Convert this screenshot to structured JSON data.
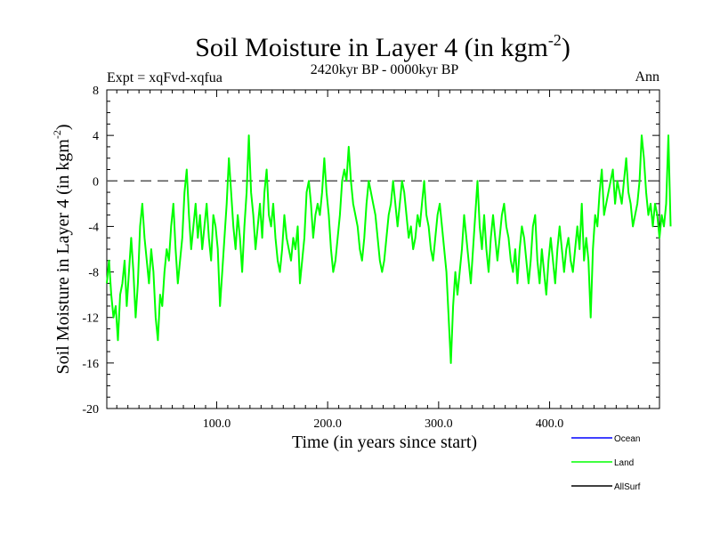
{
  "chart_data": {
    "type": "line",
    "title_main": "Soil Moisture in Layer 4 (in kgm",
    "title_sup": "-2",
    "title_close": ")",
    "subtitle": "2420kyr BP - 0000kyr BP",
    "expt_label": "Expt = xqFvd-xqfua",
    "season_label": "Ann",
    "xlabel": "Time (in years since start)",
    "ylabel_main": "Soil Moisture in Layer 4 (in kgm",
    "ylabel_sup": "-2",
    "ylabel_close": ")",
    "xlim": [
      1,
      499
    ],
    "ylim": [
      -20,
      8
    ],
    "x_ticks": [
      100,
      200,
      300,
      400
    ],
    "x_tick_labels": [
      "100.0",
      "200.0",
      "300.0",
      "400.0"
    ],
    "y_ticks": [
      8,
      4,
      0,
      -4,
      -8,
      -12,
      -16,
      -20
    ],
    "y_tick_labels": [
      "8",
      "4",
      "0",
      "-4",
      "-8",
      "-12",
      "-16",
      "-20"
    ],
    "reference_line": 0,
    "legend": [
      {
        "name": "Ocean",
        "color": "#0000ff"
      },
      {
        "name": "Land",
        "color": "#00ff00"
      },
      {
        "name": "AllSurf",
        "color": "#000000"
      }
    ],
    "series": [
      {
        "name": "Land",
        "color": "#00ff00",
        "x_start": 1,
        "x_step": 2,
        "values": [
          -9,
          -7,
          -10,
          -12,
          -11,
          -14,
          -10,
          -9,
          -7,
          -11,
          -8,
          -5,
          -8,
          -12,
          -9,
          -4,
          -2,
          -5,
          -7,
          -9,
          -6,
          -8,
          -12,
          -14,
          -10,
          -11,
          -8,
          -6,
          -7,
          -4,
          -2,
          -6,
          -9,
          -7,
          -5,
          -1,
          1,
          -3,
          -6,
          -4,
          -2,
          -5,
          -3,
          -6,
          -4,
          -2,
          -5,
          -7,
          -3,
          -4,
          -6,
          -11,
          -8,
          -5,
          -2,
          2,
          -1,
          -4,
          -6,
          -3,
          -5,
          -8,
          -4,
          -1,
          4,
          -1,
          -3,
          -6,
          -4,
          -2,
          -5,
          -1,
          1,
          -3,
          -4,
          -2,
          -5,
          -7,
          -8,
          -6,
          -3,
          -5,
          -6,
          -7,
          -5,
          -6,
          -4,
          -9,
          -7,
          -5,
          -1,
          0,
          -2,
          -5,
          -3,
          -2,
          -3,
          -1,
          2,
          -1,
          -3,
          -6,
          -8,
          -7,
          -5,
          -3,
          0,
          1,
          0,
          3,
          0,
          -2,
          -3,
          -4,
          -6,
          -7,
          -5,
          -2,
          0,
          -1,
          -2,
          -3,
          -5,
          -7,
          -8,
          -7,
          -5,
          -3,
          -2,
          0,
          -2,
          -4,
          -2,
          0,
          -1,
          -3,
          -5,
          -4,
          -6,
          -5,
          -3,
          -4,
          -2,
          0,
          -3,
          -4,
          -6,
          -7,
          -5,
          -3,
          -2,
          -4,
          -6,
          -8,
          -12,
          -16,
          -11,
          -8,
          -10,
          -8,
          -6,
          -3,
          -5,
          -7,
          -9,
          -6,
          -3,
          0,
          -4,
          -6,
          -3,
          -6,
          -8,
          -5,
          -3,
          -5,
          -7,
          -5,
          -3,
          -2,
          -4,
          -5,
          -7,
          -8,
          -6,
          -9,
          -6,
          -4,
          -5,
          -7,
          -9,
          -7,
          -4,
          -3,
          -7,
          -9,
          -6,
          -8,
          -10,
          -7,
          -5,
          -7,
          -9,
          -6,
          -4,
          -6,
          -8,
          -6,
          -5,
          -7,
          -8,
          -6,
          -4,
          -6,
          -2,
          -7,
          -5,
          -7,
          -12,
          -6,
          -3,
          -4,
          -1,
          1,
          -3,
          -2,
          -1,
          0,
          1,
          -2,
          0,
          -1,
          -2,
          0,
          2,
          -1,
          -2,
          -4,
          -3,
          -2,
          0,
          4,
          2,
          -1,
          -3,
          -2,
          -4,
          -2,
          -3,
          -5,
          -3,
          -4,
          -2,
          4,
          -4
        ]
      }
    ]
  }
}
